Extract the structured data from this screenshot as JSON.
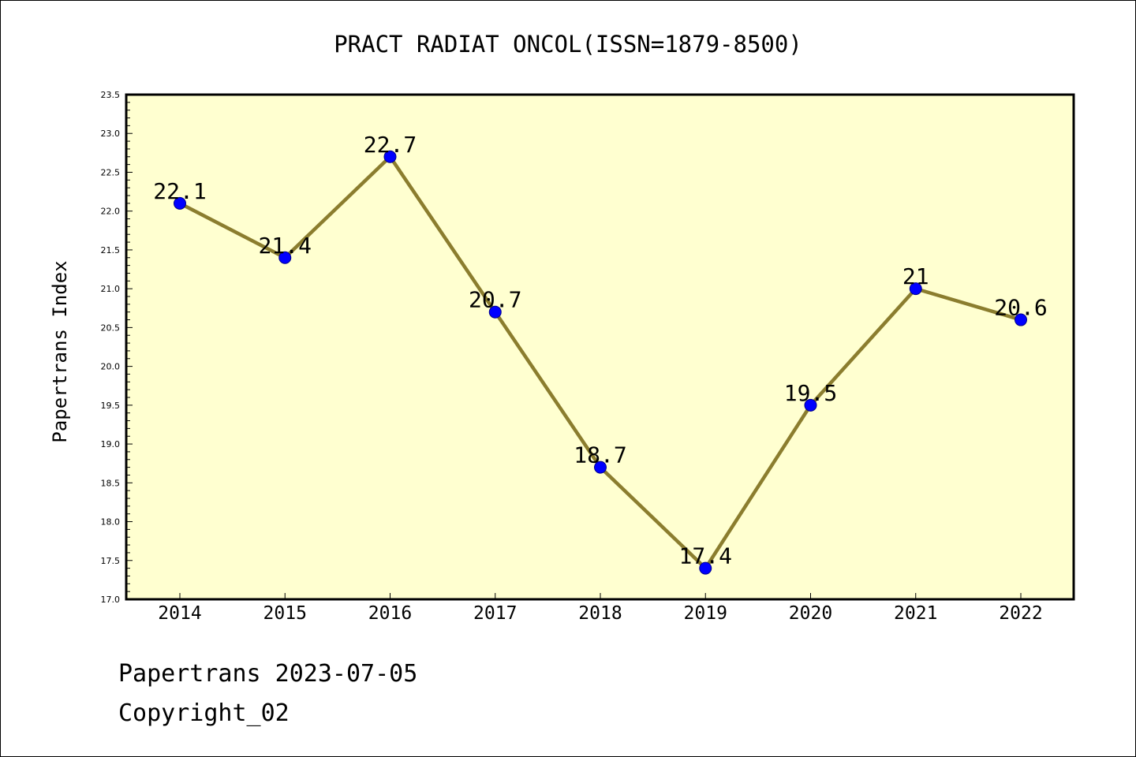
{
  "footer": {
    "line1": "Papertrans 2023-07-05",
    "line2": "Copyright_02"
  },
  "chart_data": {
    "type": "line",
    "title": "PRACT RADIAT ONCOL(ISSN=1879-8500)",
    "ylabel": "Papertrans Index",
    "xlabel": "",
    "x": [
      "2014",
      "2015",
      "2016",
      "2017",
      "2018",
      "2019",
      "2020",
      "2021",
      "2022"
    ],
    "series": [
      {
        "values": [
          22.1,
          21.4,
          22.7,
          20.7,
          18.7,
          17.4,
          19.5,
          21,
          20.6
        ],
        "labels": [
          "22.1",
          "21.4",
          "22.7",
          "20.7",
          "18.7",
          "17.4",
          "19.5",
          "21",
          "20.6"
        ]
      }
    ],
    "ylim": [
      17.0,
      23.5
    ],
    "yticks": [
      "17.0",
      "17.5",
      "18.0",
      "18.5",
      "19.0",
      "19.5",
      "20.0",
      "20.5",
      "21.0",
      "21.5",
      "22.0",
      "22.5",
      "23.0",
      "23.5"
    ],
    "ytick_values": [
      17.0,
      17.5,
      18.0,
      18.5,
      19.0,
      19.5,
      20.0,
      20.5,
      21.0,
      21.5,
      22.0,
      22.5,
      23.0,
      23.5
    ],
    "grid": false,
    "legend": "none",
    "colors": {
      "plot_background": "#ffffd0",
      "line": "#8b7d2e",
      "marker_fill": "#0000ff",
      "marker_edge": "#00008b",
      "axis": "#000000"
    }
  }
}
